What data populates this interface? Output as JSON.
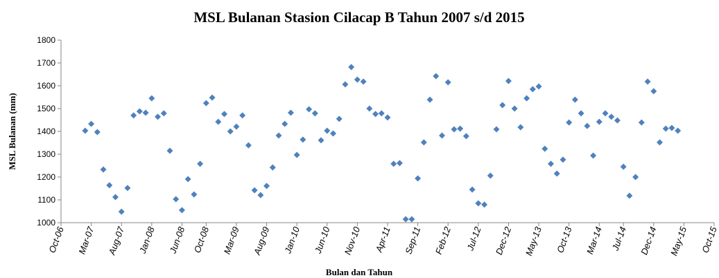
{
  "chart_data": {
    "type": "scatter",
    "title": "MSL Bulanan Stasion Cilacap B Tahun 2007 s/d 2015",
    "x_label": "Bulan dan Tahun",
    "y_label": "MSL Bulanan (mm)",
    "x": [
      "2007-02",
      "2007-03",
      "2007-04",
      "2007-05",
      "2007-06",
      "2007-07",
      "2007-08",
      "2007-09",
      "2007-10",
      "2007-11",
      "2007-12",
      "2008-01",
      "2008-02",
      "2008-03",
      "2008-04",
      "2008-05",
      "2008-06",
      "2008-07",
      "2008-08",
      "2008-09",
      "2008-10",
      "2008-11",
      "2008-12",
      "2009-01",
      "2009-02",
      "2009-03",
      "2009-04",
      "2009-05",
      "2009-06",
      "2009-07",
      "2009-08",
      "2009-09",
      "2009-10",
      "2009-11",
      "2009-12",
      "2010-01",
      "2010-02",
      "2010-03",
      "2010-04",
      "2010-05",
      "2010-06",
      "2010-07",
      "2010-08",
      "2010-09",
      "2010-10",
      "2010-11",
      "2010-12",
      "2011-01",
      "2011-02",
      "2011-03",
      "2011-04",
      "2011-05",
      "2011-06",
      "2011-07",
      "2011-08",
      "2011-09",
      "2011-10",
      "2011-11",
      "2011-12",
      "2012-01",
      "2012-02",
      "2012-03",
      "2012-04",
      "2012-05",
      "2012-06",
      "2012-07",
      "2012-08",
      "2012-09",
      "2012-10",
      "2012-11",
      "2012-12",
      "2013-01",
      "2013-02",
      "2013-03",
      "2013-04",
      "2013-05",
      "2013-06",
      "2013-07",
      "2013-08",
      "2013-09",
      "2013-10",
      "2013-11",
      "2013-12",
      "2014-01",
      "2014-02",
      "2014-03",
      "2014-04",
      "2014-05",
      "2014-06",
      "2014-07",
      "2014-08",
      "2014-09",
      "2014-10",
      "2014-11",
      "2014-12",
      "2015-01",
      "2015-02",
      "2015-03",
      "2015-04"
    ],
    "series": [
      {
        "name": "MSL Bulanan",
        "color": "#4f81bd",
        "values": [
          1403,
          1433,
          1397,
          1233,
          1164,
          1112,
          1048,
          1152,
          1470,
          1488,
          1482,
          1545,
          1464,
          1479,
          1315,
          1103,
          1055,
          1191,
          1124,
          1258,
          1524,
          1548,
          1442,
          1476,
          1400,
          1421,
          1470,
          1339,
          1142,
          1121,
          1161,
          1242,
          1382,
          1433,
          1482,
          1297,
          1364,
          1497,
          1479,
          1361,
          1403,
          1391,
          1455,
          1606,
          1682,
          1627,
          1618,
          1500,
          1476,
          1479,
          1461,
          1258,
          1261,
          1015,
          1015,
          1194,
          1352,
          1539,
          1642,
          1382,
          1615,
          1409,
          1412,
          1379,
          1145,
          1085,
          1079,
          1206,
          1409,
          1515,
          1621,
          1500,
          1418,
          1545,
          1585,
          1597,
          1324,
          1258,
          1215,
          1276,
          1439,
          1539,
          1479,
          1424,
          1294,
          1442,
          1479,
          1464,
          1448,
          1245,
          1118,
          1200,
          1439,
          1618,
          1576,
          1352,
          1412,
          1415,
          1403
        ]
      }
    ],
    "xlim": [
      "2006-10",
      "2015-10"
    ],
    "xticks": [
      {
        "value": "2006-10",
        "label": "Oct-06"
      },
      {
        "value": "2007-03",
        "label": "Mar-07"
      },
      {
        "value": "2007-08",
        "label": "Aug-07"
      },
      {
        "value": "2008-01",
        "label": "Jan-08"
      },
      {
        "value": "2008-06",
        "label": "Jun-08"
      },
      {
        "value": "2008-10",
        "label": "Oct-08"
      },
      {
        "value": "2009-03",
        "label": "Mar-09"
      },
      {
        "value": "2009-08",
        "label": "Aug-09"
      },
      {
        "value": "2010-01",
        "label": "Jan-10"
      },
      {
        "value": "2010-06",
        "label": "Jun-10"
      },
      {
        "value": "2010-11",
        "label": "Nov-10"
      },
      {
        "value": "2011-04",
        "label": "Apr-11"
      },
      {
        "value": "2011-09",
        "label": "Sep-11"
      },
      {
        "value": "2012-02",
        "label": "Feb-12"
      },
      {
        "value": "2012-07",
        "label": "Jul-12"
      },
      {
        "value": "2012-12",
        "label": "Dec-12"
      },
      {
        "value": "2013-05",
        "label": "May-13"
      },
      {
        "value": "2013-10",
        "label": "Oct-13"
      },
      {
        "value": "2014-03",
        "label": "Mar-14"
      },
      {
        "value": "2014-07",
        "label": "Jul-14"
      },
      {
        "value": "2014-12",
        "label": "Dec-14"
      },
      {
        "value": "2015-05",
        "label": "May-15"
      },
      {
        "value": "2015-10",
        "label": "Oct-15"
      }
    ],
    "ylim": [
      1000,
      1800
    ],
    "yticks": [
      1000,
      1100,
      1200,
      1300,
      1400,
      1500,
      1600,
      1700,
      1800
    ],
    "grid": false
  }
}
